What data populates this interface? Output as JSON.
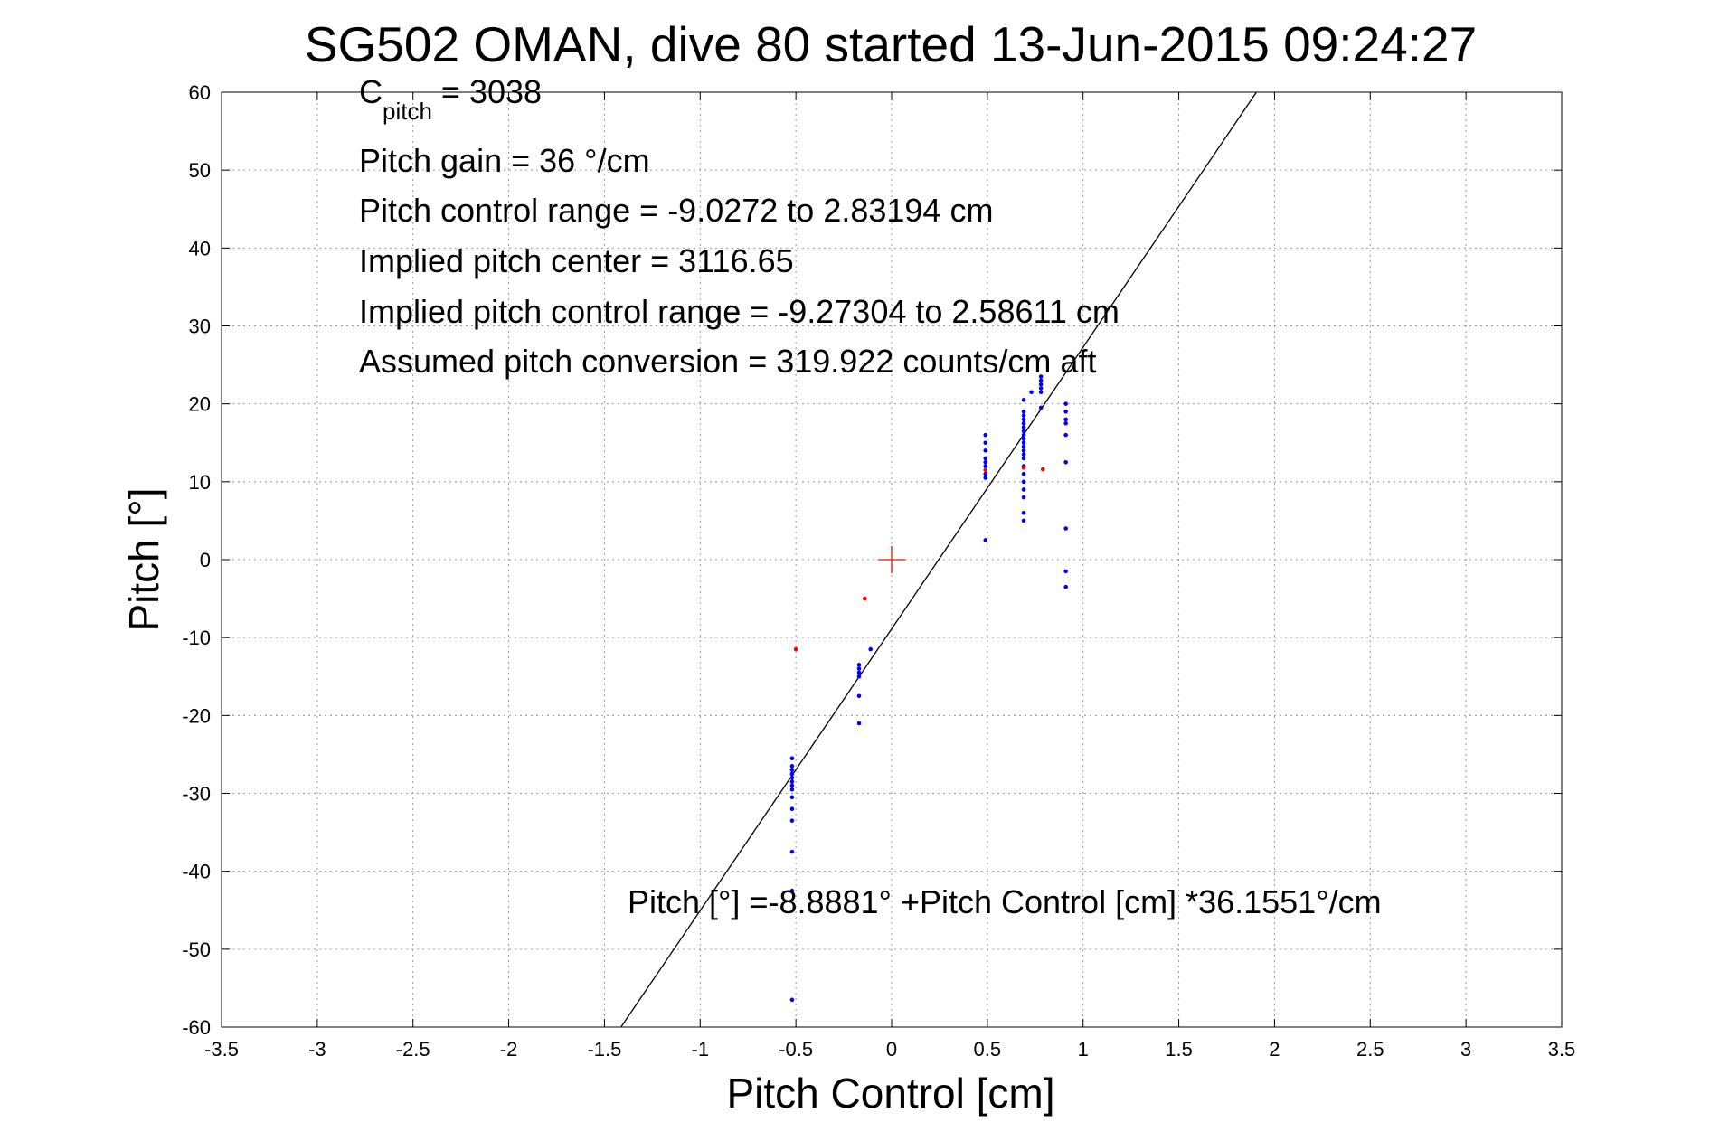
{
  "chart_data": {
    "type": "scatter",
    "title": "SG502 OMAN, dive 80 started 13-Jun-2015 09:24:27",
    "xlabel": "Pitch Control [cm]",
    "ylabel": "Pitch [°]",
    "xlim": [
      -3.5,
      3.5
    ],
    "ylim": [
      -60,
      60
    ],
    "grid": true,
    "x_ticks": [
      -3.5,
      -3,
      -2.5,
      -2,
      -1.5,
      -1,
      -0.5,
      0,
      0.5,
      1,
      1.5,
      2,
      2.5,
      3,
      3.5
    ],
    "y_ticks": [
      -60,
      -50,
      -40,
      -30,
      -20,
      -10,
      0,
      10,
      20,
      30,
      40,
      50,
      60
    ],
    "x_tick_labels": [
      "-3.5",
      "-3",
      "-2.5",
      "-2",
      "-1.5",
      "-1",
      "-0.5",
      "0",
      "0.5",
      "1",
      "1.5",
      "2",
      "2.5",
      "3",
      "3.5"
    ],
    "y_tick_labels": [
      "-60",
      "-50",
      "-40",
      "-30",
      "-20",
      "-10",
      "0",
      "10",
      "20",
      "30",
      "40",
      "50",
      "60"
    ],
    "annotations": {
      "c_pitch_main": "C",
      "c_pitch_sub": "pitch",
      "c_pitch_value": " = 3038",
      "pitch_gain": "Pitch gain = 36 °/cm",
      "pitch_control_range": "Pitch control range = -9.0272 to 2.83194 cm",
      "implied_pitch_center": "Implied pitch center = 3116.65",
      "implied_pitch_control_range": "Implied pitch control range = -9.27304 to 2.58611 cm",
      "assumed_pitch_conversion": "Assumed pitch conversion = 319.922 counts/cm aft",
      "fit_equation": "Pitch [°] =-8.8881° +Pitch Control [cm] *36.1551°/cm"
    },
    "fit_line": {
      "intercept": -8.8881,
      "slope": 36.1551,
      "color": "#000000"
    },
    "center_marker": {
      "x": 0,
      "y": 0,
      "color": "#ff0000"
    },
    "series": [
      {
        "color": "#0000ff",
        "points": [
          [
            -0.52,
            -25.5
          ],
          [
            -0.52,
            -26.5
          ],
          [
            -0.52,
            -27
          ],
          [
            -0.52,
            -27.5
          ],
          [
            -0.52,
            -28
          ],
          [
            -0.52,
            -28.5
          ],
          [
            -0.52,
            -29
          ],
          [
            -0.52,
            -29.5
          ],
          [
            -0.52,
            -30.5
          ],
          [
            -0.52,
            -32
          ],
          [
            -0.52,
            -33.5
          ],
          [
            -0.52,
            -37.5
          ],
          [
            -0.52,
            -42.5
          ],
          [
            -0.52,
            -56.5
          ],
          [
            -0.17,
            -13.5
          ],
          [
            -0.17,
            -14
          ],
          [
            -0.17,
            -14.5
          ],
          [
            -0.17,
            -15
          ],
          [
            -0.17,
            -17.5
          ],
          [
            -0.17,
            -21
          ],
          [
            -0.11,
            -11.5
          ],
          [
            0.49,
            16
          ],
          [
            0.49,
            15
          ],
          [
            0.49,
            14
          ],
          [
            0.49,
            13
          ],
          [
            0.49,
            12.5
          ],
          [
            0.49,
            12
          ],
          [
            0.49,
            11
          ],
          [
            0.49,
            10.5
          ],
          [
            0.49,
            2.5
          ],
          [
            0.69,
            19
          ],
          [
            0.69,
            18.5
          ],
          [
            0.69,
            18
          ],
          [
            0.69,
            17.5
          ],
          [
            0.69,
            17
          ],
          [
            0.69,
            16.5
          ],
          [
            0.69,
            16
          ],
          [
            0.69,
            15.5
          ],
          [
            0.69,
            15
          ],
          [
            0.69,
            14.5
          ],
          [
            0.69,
            14
          ],
          [
            0.69,
            13.5
          ],
          [
            0.69,
            13
          ],
          [
            0.69,
            12
          ],
          [
            0.69,
            11
          ],
          [
            0.69,
            10
          ],
          [
            0.69,
            9
          ],
          [
            0.69,
            8
          ],
          [
            0.69,
            6
          ],
          [
            0.69,
            5
          ],
          [
            0.69,
            20.5
          ],
          [
            0.73,
            21.5
          ],
          [
            0.78,
            23.5
          ],
          [
            0.78,
            23
          ],
          [
            0.78,
            22.5
          ],
          [
            0.78,
            22
          ],
          [
            0.78,
            21.5
          ],
          [
            0.78,
            19.5
          ],
          [
            0.91,
            20
          ],
          [
            0.91,
            19
          ],
          [
            0.91,
            18
          ],
          [
            0.91,
            17.5
          ],
          [
            0.91,
            16
          ],
          [
            0.91,
            12.5
          ],
          [
            0.91,
            4
          ],
          [
            0.91,
            -1.5
          ],
          [
            0.91,
            -3.5
          ]
        ]
      },
      {
        "color": "#ff0000",
        "points": [
          [
            -0.5,
            -11.5
          ],
          [
            -0.14,
            -5
          ],
          [
            0.49,
            11.5
          ],
          [
            0.69,
            11.8
          ],
          [
            0.79,
            11.6
          ]
        ]
      }
    ]
  }
}
